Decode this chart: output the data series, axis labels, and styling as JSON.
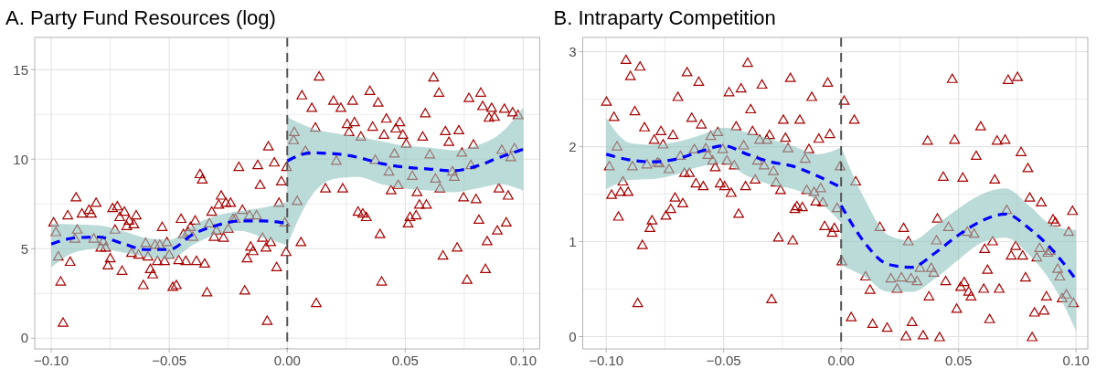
{
  "chart_data": [
    {
      "type": "scatter",
      "title": "A. Party Fund Resources (log)",
      "grid": true,
      "xlim": [
        -0.107,
        0.107
      ],
      "ylim": [
        -0.6,
        16.8
      ],
      "xticks": [
        {
          "value": -0.1,
          "label": "−0.10"
        },
        {
          "value": -0.075,
          "label": null
        },
        {
          "value": -0.05,
          "label": "−0.05"
        },
        {
          "value": -0.025,
          "label": null
        },
        {
          "value": 0,
          "label": "0.00"
        },
        {
          "value": 0.025,
          "label": null
        },
        {
          "value": 0.05,
          "label": "0.05"
        },
        {
          "value": 0.075,
          "label": null
        },
        {
          "value": 0.1,
          "label": "0.10"
        }
      ],
      "yticks": [
        0,
        {
          "value": 2.5,
          "label": null
        },
        5,
        {
          "value": 7.5,
          "label": null
        },
        10,
        {
          "value": 12.5,
          "label": null
        },
        15
      ],
      "ref_lines": [
        {
          "axis": "x",
          "value": 0,
          "color": "#555555",
          "line_style": "dashed"
        }
      ],
      "series": [
        {
          "marker": "triangle",
          "color": "#a50000",
          "x": [
            -0.099,
            -0.098,
            -0.097,
            -0.096,
            -0.095,
            -0.093,
            -0.092,
            -0.09,
            -0.0895,
            -0.089,
            -0.087,
            -0.084,
            -0.083,
            -0.081,
            -0.082,
            -0.079,
            -0.077,
            -0.078,
            -0.076,
            -0.075,
            -0.074,
            -0.072,
            -0.073,
            -0.071,
            -0.069,
            -0.07,
            -0.068,
            -0.067,
            -0.065,
            -0.064,
            -0.066,
            -0.063,
            -0.061,
            -0.06,
            -0.059,
            -0.058,
            -0.057,
            -0.056,
            -0.055,
            -0.054,
            -0.053,
            -0.052,
            -0.051,
            -0.05,
            -0.0485,
            -0.047,
            -0.046,
            -0.045,
            -0.044,
            -0.043,
            -0.042,
            -0.041,
            -0.039,
            -0.04,
            -0.0385,
            -0.037,
            -0.036,
            -0.035,
            -0.034,
            -0.033,
            -0.032,
            -0.031,
            -0.03,
            -0.029,
            -0.028,
            -0.027,
            -0.026,
            -0.025,
            -0.024,
            -0.023,
            -0.022,
            -0.0205,
            -0.019,
            -0.018,
            -0.017,
            -0.016,
            -0.0155,
            -0.0145,
            -0.013,
            -0.0125,
            -0.0115,
            -0.0105,
            -0.009,
            -0.0085,
            -0.008,
            -0.007,
            -0.0055,
            -0.0045,
            -0.0035,
            -0.0025,
            -0.001,
            -0.0005,
            -0.0003,
            0.0027,
            0.003,
            0.0042,
            0.0058,
            0.0062,
            0.0077,
            0.0104,
            0.0119,
            0.0123,
            0.0135,
            0.0162,
            0.0196,
            0.0208,
            0.0227,
            0.0235,
            0.0254,
            0.0262,
            0.0277,
            0.0285,
            0.03,
            0.0312,
            0.032,
            0.0335,
            0.035,
            0.0362,
            0.0373,
            0.0385,
            0.0393,
            0.04,
            0.041,
            0.042,
            0.0431,
            0.044,
            0.0454,
            0.046,
            0.047,
            0.0477,
            0.049,
            0.0504,
            0.0512,
            0.052,
            0.053,
            0.0546,
            0.055,
            0.056,
            0.0574,
            0.0585,
            0.059,
            0.0604,
            0.062,
            0.0628,
            0.0643,
            0.0647,
            0.066,
            0.067,
            0.0685,
            0.07,
            0.0708,
            0.072,
            0.0727,
            0.074,
            0.0747,
            0.0762,
            0.077,
            0.0778,
            0.0789,
            0.08,
            0.0812,
            0.082,
            0.0828,
            0.084,
            0.0847,
            0.0855,
            0.0866,
            0.0878,
            0.089,
            0.0897,
            0.0909,
            0.092,
            0.0928,
            0.0936,
            0.0947,
            0.0955,
            0.0963,
            0.0978
          ],
          "values": [
            6.5,
            5.96,
            4.6,
            3.2,
            0.9,
            6.9,
            4.3,
            5.6,
            7.9,
            6.1,
            7.0,
            7.2,
            7.0,
            7.6,
            5.6,
            5.1,
            5.1,
            5.45,
            4.1,
            4.5,
            7.3,
            7.4,
            6.1,
            6.8,
            7.1,
            3.8,
            6.3,
            6.6,
            6.4,
            6.9,
            4.8,
            4.7,
            3.0,
            5.35,
            4.6,
            3.9,
            3.6,
            5.25,
            4.35,
            5.25,
            6.25,
            4.35,
            5.4,
            4.7,
            2.9,
            3.0,
            4.4,
            6.7,
            5.85,
            4.35,
            5.96,
            6.25,
            6.6,
            5.7,
            4.35,
            9.2,
            8.9,
            4.2,
            2.6,
            6.45,
            7.1,
            5.7,
            6.05,
            7.5,
            8.0,
            5.65,
            7.6,
            6.15,
            7.6,
            6.7,
            6.7,
            9.6,
            7.2,
            2.7,
            4.5,
            6.9,
            5.15,
            4.9,
            6.9,
            9.7,
            8.6,
            5.65,
            5.1,
            1.0,
            10.75,
            5.4,
            9.85,
            4.0,
            7.6,
            8.8,
            6.5,
            4.85,
            9.6,
            11.1,
            11.55,
            7.7,
            5.4,
            13.6,
            10.5,
            12.9,
            11.8,
            2.0,
            14.65,
            8.4,
            13.3,
            9.95,
            12.9,
            8.4,
            12.0,
            11.55,
            13.3,
            12.1,
            7.1,
            11.3,
            7.0,
            6.8,
            13.85,
            11.85,
            10.0,
            13.2,
            5.85,
            3.2,
            11.4,
            12.3,
            9.35,
            8.3,
            10.35,
            11.75,
            8.6,
            12.1,
            11.4,
            10.9,
            6.45,
            6.8,
            9.1,
            6.9,
            8.2,
            7.5,
            11.3,
            12.6,
            7.5,
            10.3,
            14.6,
            8.95,
            13.75,
            8.4,
            4.65,
            11.6,
            11.0,
            9.35,
            9.05,
            5.1,
            11.65,
            10.4,
            7.9,
            3.3,
            13.45,
            9.7,
            10.85,
            7.8,
            6.65,
            13.75,
            13.0,
            3.9,
            5.45,
            12.35,
            12.9,
            12.4,
            6.05,
            8.4,
            10.55,
            12.85,
            6.5,
            8.0,
            10.15,
            12.65,
            10.65,
            12.5
          ]
        },
        {
          "type": "line",
          "color": "#0000ff",
          "line_style": "dashed",
          "x": [
            -0.1,
            -0.09,
            -0.08,
            -0.07,
            -0.06,
            -0.05,
            -0.04,
            -0.03,
            -0.02,
            -0.01,
            0
          ],
          "values": [
            5.25,
            5.6,
            5.65,
            5.3,
            4.95,
            4.95,
            5.8,
            6.3,
            6.55,
            6.55,
            6.4
          ],
          "lower": [
            3.95,
            4.8,
            5.0,
            4.8,
            4.55,
            4.4,
            5.2,
            5.8,
            6.0,
            5.6,
            5.2
          ],
          "upper": [
            6.4,
            6.35,
            6.3,
            6.0,
            5.6,
            5.5,
            6.3,
            6.85,
            7.1,
            7.3,
            7.6
          ]
        },
        {
          "type": "line",
          "color": "#0000ff",
          "line_style": "dashed",
          "x": [
            0,
            0.01,
            0.02,
            0.03,
            0.04,
            0.05,
            0.06,
            0.07,
            0.08,
            0.09,
            0.1
          ],
          "values": [
            9.9,
            10.35,
            10.3,
            10.1,
            9.75,
            9.55,
            9.45,
            9.35,
            9.6,
            10.1,
            10.55
          ],
          "lower": [
            5.2,
            7.9,
            8.9,
            9.0,
            8.6,
            8.35,
            8.25,
            8.15,
            8.35,
            8.6,
            8.25
          ],
          "upper": [
            12.35,
            11.75,
            11.45,
            11.25,
            11.0,
            10.75,
            10.65,
            10.5,
            10.75,
            11.4,
            12.9
          ]
        }
      ]
    },
    {
      "type": "scatter",
      "title": "B. Intraparty Competition",
      "grid": true,
      "xlim": [
        -0.11,
        0.105
      ],
      "ylim": [
        -0.13,
        3.15
      ],
      "xticks": [
        {
          "value": -0.1,
          "label": "−0.10"
        },
        {
          "value": -0.075,
          "label": null
        },
        {
          "value": -0.05,
          "label": "−0.05"
        },
        {
          "value": -0.025,
          "label": null
        },
        {
          "value": 0,
          "label": "0.00"
        },
        {
          "value": 0.025,
          "label": null
        },
        {
          "value": 0.05,
          "label": "0.05"
        },
        {
          "value": 0.075,
          "label": null
        },
        {
          "value": 0.1,
          "label": "0.10"
        }
      ],
      "yticks": [
        0,
        {
          "value": 0.5,
          "label": null
        },
        1,
        {
          "value": 1.5,
          "label": null
        },
        2,
        {
          "value": 2.5,
          "label": null
        },
        3
      ],
      "ref_lines": [
        {
          "axis": "x",
          "value": 0,
          "color": "#555555",
          "line_style": "dashed"
        }
      ],
      "series": [
        {
          "marker": "triangle",
          "color": "#a50000",
          "x": [
            -0.0999,
            -0.0987,
            -0.0977,
            -0.0967,
            -0.0954,
            -0.0948,
            -0.0939,
            -0.0929,
            -0.0916,
            -0.0907,
            -0.0897,
            -0.0888,
            -0.0878,
            -0.0866,
            -0.0856,
            -0.0846,
            -0.0837,
            -0.0827,
            -0.0814,
            -0.0805,
            -0.0796,
            -0.0782,
            -0.0774,
            -0.0767,
            -0.0758,
            -0.0746,
            -0.0733,
            -0.0725,
            -0.0716,
            -0.0707,
            -0.0695,
            -0.0684,
            -0.0674,
            -0.0667,
            -0.0656,
            -0.0646,
            -0.0636,
            -0.0625,
            -0.0618,
            -0.0606,
            -0.0595,
            -0.0587,
            -0.0576,
            -0.0567,
            -0.0555,
            -0.0547,
            -0.0536,
            -0.0525,
            -0.0515,
            -0.0504,
            -0.0496,
            -0.0486,
            -0.0477,
            -0.0468,
            -0.0455,
            -0.0447,
            -0.0436,
            -0.0426,
            -0.0415,
            -0.0407,
            -0.0398,
            -0.0385,
            -0.0377,
            -0.0366,
            -0.0356,
            -0.0347,
            -0.0337,
            -0.0328,
            -0.0316,
            -0.0305,
            -0.0296,
            -0.0288,
            -0.0277,
            -0.0267,
            -0.0258,
            -0.0246,
            -0.0237,
            -0.0226,
            -0.0216,
            -0.0206,
            -0.0197,
            -0.0188,
            -0.0176,
            -0.0165,
            -0.0153,
            -0.0146,
            -0.0137,
            -0.0125,
            -0.0115,
            -0.0108,
            -0.0095,
            -0.0087,
            -0.0078,
            -0.007,
            -0.0057,
            -0.0048,
            -0.0038,
            -0.0029,
            -0.0017,
            -0.0004,
            0.0003,
            0.0013,
            0.0043,
            0.0056,
            0.0062,
            0.0104,
            0.0123,
            0.0134,
            0.0165,
            0.0196,
            0.0212,
            0.0238,
            0.0257,
            0.0266,
            0.0276,
            0.0286,
            0.0302,
            0.0298,
            0.0323,
            0.0336,
            0.0349,
            0.0368,
            0.0374,
            0.0384,
            0.0394,
            0.0406,
            0.041,
            0.0419,
            0.0435,
            0.0445,
            0.0457,
            0.0473,
            0.0483,
            0.0492,
            0.0509,
            0.0518,
            0.0524,
            0.0537,
            0.0543,
            0.0553,
            0.0566,
            0.0575,
            0.0594,
            0.0607,
            0.0611,
            0.0623,
            0.0632,
            0.0645,
            0.0654,
            0.0664,
            0.0673,
            0.0698,
            0.0705,
            0.0711,
            0.0724,
            0.0743,
            0.0751,
            0.0766,
            0.0773,
            0.0785,
            0.0795,
            0.0803,
            0.0813,
            0.0823,
            0.0833,
            0.0845,
            0.0852,
            0.0864,
            0.0874,
            0.088,
            0.0891,
            0.0902,
            0.0912,
            0.0922,
            0.0931,
            0.0941,
            0.0959,
            0.0969,
            0.0985,
            0.0989
          ],
          "values": [
            2.48,
            1.8,
            1.5,
            2.32,
            2.01,
            1.27,
            1.53,
            1.64,
            2.92,
            1.53,
            2.75,
            1.8,
            2.38,
            0.36,
            2.85,
            0.97,
            2.21,
            1.82,
            1.15,
            1.23,
            2.08,
            1.84,
            1.83,
            2.17,
            2.03,
            1.28,
            1.77,
            1.35,
            2.13,
            1.47,
            2.53,
            1.91,
            1.41,
            1.73,
            2.79,
            1.73,
            2.31,
            1.98,
            1.62,
            2.69,
            2.24,
            1.59,
            1.99,
            1.92,
            2.12,
            1.86,
            1.79,
            2.16,
            1.62,
            1.98,
            1.59,
            1.86,
            2.58,
            1.52,
            1.81,
            2.22,
            1.3,
            2.62,
            2.02,
            1.59,
            2.89,
            2.4,
            2.17,
            1.66,
            1.86,
            2.08,
            2.66,
            1.81,
            2.08,
            2.13,
            0.4,
            1.75,
            1.63,
            1.05,
            1.55,
            2.29,
            2.1,
            1.99,
            2.73,
            1.02,
            1.35,
            1.38,
            2.29,
            1.37,
            1.88,
            1.55,
            1.98,
            2.53,
            1.53,
            1.43,
            2.09,
            1.57,
            1.42,
            1.17,
            2.68,
            2.14,
            1.1,
            1.15,
            1.36,
            1.8,
            0.8,
            2.49,
            0.21,
            2.29,
            1.64,
            0.64,
            0.5,
            0.14,
            1.16,
            0.1,
            0.62,
            0.51,
            0.63,
            1.15,
            0.01,
            1.01,
            0.16,
            0.62,
            0.59,
            0.73,
            0.02,
            2.07,
            0.43,
            0.73,
            0.68,
            1.02,
            1.25,
            0.0,
            1.69,
            0.59,
            1.16,
            2.72,
            2.08,
            0.3,
            0.53,
            1.68,
            0.58,
            1.11,
            0.48,
            0.43,
            1.09,
            1.91,
            2.22,
            0.51,
            0.93,
            0.71,
            0.19,
            1.01,
            1.66,
            2.07,
            0.51,
            2.08,
            1.34,
            2.71,
            0.86,
            0.96,
            2.74,
            1.95,
            0.86,
            0.63,
            1.78,
            1.47,
            0.0,
            0.26,
            0.84,
            0.94,
            1.42,
            0.28,
            0.43,
            0.89,
            0.91,
            1.24,
            1.21,
            0.72,
            0.64,
            0.41,
            0.45,
            1.11,
            1.33,
            0.36
          ]
        },
        {
          "type": "line",
          "color": "#0000ff",
          "line_style": "dashed",
          "x": [
            -0.1,
            -0.09,
            -0.08,
            -0.07,
            -0.06,
            -0.05,
            -0.04,
            -0.03,
            -0.02,
            -0.01,
            0
          ],
          "values": [
            1.92,
            1.86,
            1.84,
            1.87,
            1.95,
            2.01,
            1.92,
            1.84,
            1.79,
            1.69,
            1.57
          ],
          "lower": [
            1.55,
            1.65,
            1.66,
            1.71,
            1.79,
            1.82,
            1.69,
            1.6,
            1.55,
            1.43,
            1.2
          ],
          "upper": [
            2.3,
            2.04,
            2.02,
            2.05,
            2.12,
            2.2,
            2.15,
            2.08,
            2.0,
            1.92,
            1.99
          ]
        },
        {
          "type": "line",
          "color": "#0000ff",
          "line_style": "dashed",
          "x": [
            0,
            0.01,
            0.02,
            0.03,
            0.04,
            0.05,
            0.06,
            0.07,
            0.08,
            0.09,
            0.1
          ],
          "values": [
            1.38,
            0.99,
            0.76,
            0.73,
            0.88,
            1.07,
            1.22,
            1.29,
            1.14,
            0.91,
            0.6
          ],
          "lower": [
            0.75,
            0.63,
            0.47,
            0.47,
            0.61,
            0.81,
            0.99,
            1.04,
            0.86,
            0.55,
            0.06
          ],
          "upper": [
            1.99,
            1.45,
            1.07,
            1.01,
            1.17,
            1.35,
            1.5,
            1.56,
            1.38,
            1.17,
            1.12
          ]
        }
      ]
    }
  ]
}
